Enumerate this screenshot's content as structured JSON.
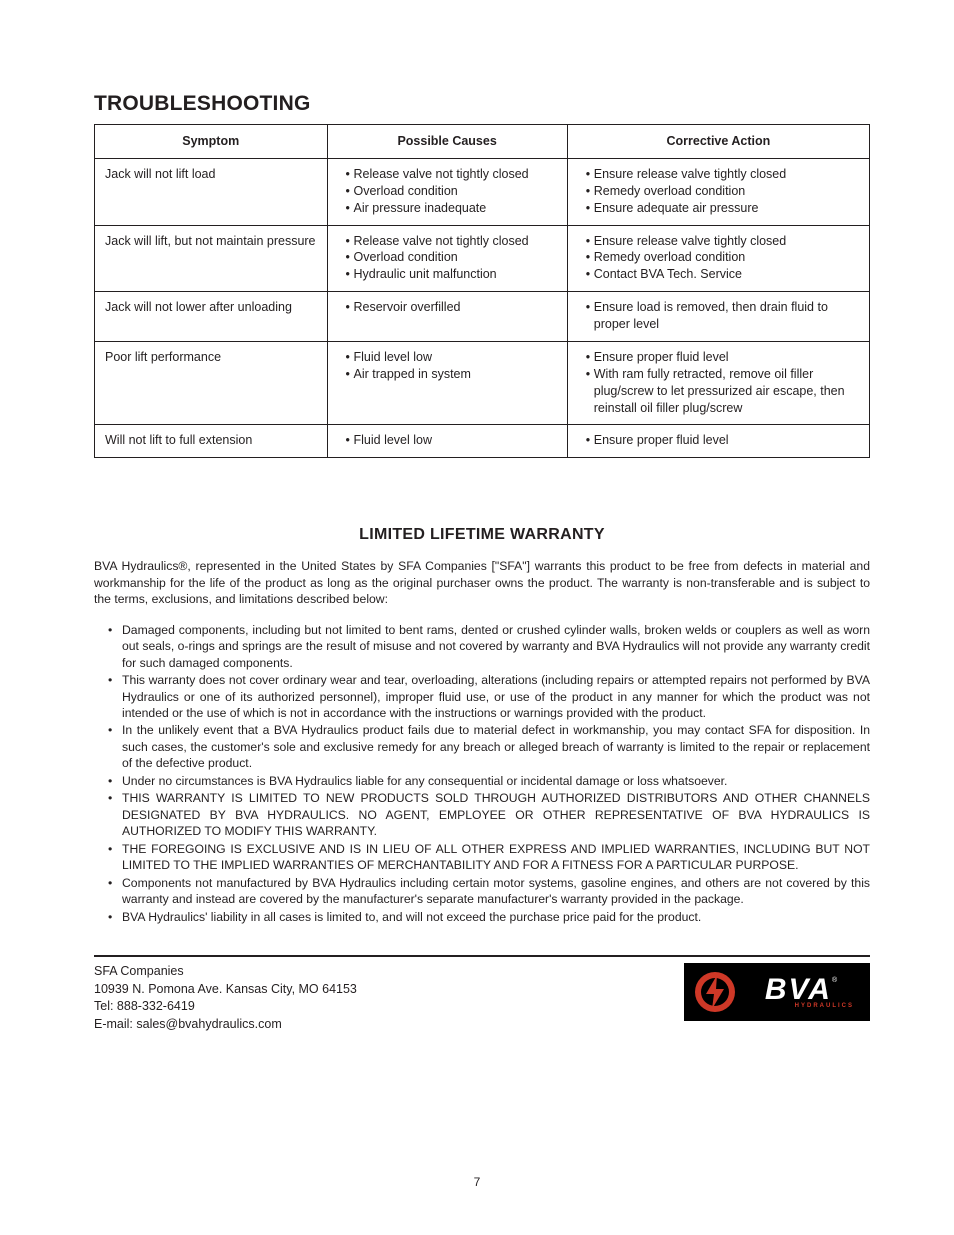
{
  "section_title": "TROUBLESHOOTING",
  "table": {
    "headers": {
      "symptom": "Symptom",
      "causes": "Possible Causes",
      "action": "Corrective Action"
    },
    "rows": [
      {
        "symptom": "Jack will not lift load",
        "causes": [
          "Release valve not tightly closed",
          "Overload condition",
          "Air pressure inadequate"
        ],
        "action": [
          "Ensure release valve tightly closed",
          "Remedy overload condition",
          "Ensure adequate air pressure"
        ]
      },
      {
        "symptom": "Jack will lift, but not maintain pressure",
        "causes": [
          "Release valve not tightly closed",
          "Overload condition",
          "Hydraulic unit malfunction"
        ],
        "action": [
          "Ensure release valve tightly closed",
          "Remedy overload condition",
          "Contact BVA Tech. Service"
        ]
      },
      {
        "symptom": "Jack will not lower after unloading",
        "causes": [
          "Reservoir overfilled"
        ],
        "action": [
          "Ensure load is removed, then drain fluid to proper level"
        ]
      },
      {
        "symptom": "Poor lift performance",
        "causes": [
          "Fluid level low",
          "Air trapped in system"
        ],
        "action": [
          "Ensure proper fluid level",
          "With ram fully retracted, remove oil filler plug/screw to let pressurized air escape, then reinstall oil filler plug/screw"
        ]
      },
      {
        "symptom": "Will not lift to full extension",
        "causes": [
          "Fluid level low"
        ],
        "action": [
          "Ensure proper fluid level"
        ]
      }
    ]
  },
  "warranty": {
    "title": "LIMITED LIFETIME WARRANTY",
    "intro": "BVA Hydraulics®, represented in the United States by SFA Companies [\"SFA\"] warrants this product to be free from defects in material and workmanship for the life of the product as long as the original purchaser owns the product. The warranty is non-transferable and is subject to the terms, exclusions, and limitations described below:",
    "items": [
      "Damaged components, including but not limited to bent rams, dented or crushed cylinder walls, broken welds or couplers as well as worn out seals, o-rings and springs are the result of misuse and not covered by warranty and BVA Hydraulics will not provide any warranty credit for such damaged components.",
      "This warranty does not cover ordinary wear and tear, overloading, alterations (including repairs or attempted repairs not performed by BVA Hydraulics or one of its authorized personnel), improper fluid use, or use of the product in any manner for which the product was not intended or the use of which is not in accordance with the instructions or warnings provided with the product.",
      "In the unlikely event that a BVA Hydraulics product fails due to material defect in workmanship, you may contact SFA for disposition. In such cases, the customer's sole and exclusive remedy for any breach or alleged breach of warranty is limited to the repair or replacement of the defective product.",
      "Under no circumstances is BVA Hydraulics liable for any consequential or incidental damage or loss whatsoever.",
      "THIS WARRANTY IS LIMITED TO NEW PRODUCTS SOLD THROUGH AUTHORIZED DISTRIBUTORS AND OTHER CHANNELS DESIGNATED BY BVA HYDRAULICS. NO AGENT, EMPLOYEE OR OTHER REPRESENTATIVE OF BVA HYDRAULICS IS AUTHORIZED TO MODIFY THIS WARRANTY.",
      "THE FOREGOING IS EXCLUSIVE AND IS IN LIEU OF ALL OTHER EXPRESS AND IMPLIED WARRANTIES, INCLUDING BUT NOT LIMITED TO THE IMPLIED WARRANTIES OF MERCHANTABILITY AND FOR A FITNESS FOR A PARTICULAR PURPOSE.",
      "Components not manufactured by BVA Hydraulics including certain motor systems, gasoline engines, and others are not covered by this warranty and instead are covered by the manufacturer's separate manufacturer's warranty provided in the package.",
      "BVA Hydraulics' liability in all cases is limited to, and will not exceed the purchase price paid for the product."
    ]
  },
  "footer": {
    "company": "SFA Companies",
    "address": "10939  N. Pomona Ave. Kansas City, MO 64153",
    "tel": "Tel: 888-332-6419",
    "email": "E-mail: sales@bvahydraulics.com"
  },
  "logo": {
    "brand": "BVA",
    "sub": "HYDRAULICS",
    "reg": "®",
    "circle_color": "#cf3827",
    "bolt_color": "#000000",
    "bg_color": "#000000",
    "text_color": "#ffffff"
  },
  "page_number": "7",
  "colors": {
    "text": "#231f20",
    "border": "#231f20",
    "background": "#ffffff"
  },
  "fonts": {
    "body_family": "Arial, Helvetica, sans-serif",
    "title_size_pt": 16,
    "header_size_pt": 12,
    "body_size_pt": 9
  }
}
